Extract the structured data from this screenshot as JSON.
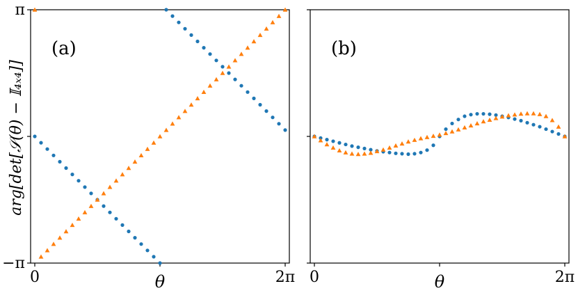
{
  "figure": {
    "ylabel": "arg[det[𝒮(θ) − 𝕀₄ₓ₄]]",
    "colors": {
      "series_circle": "#1f77b4",
      "series_triangle": "#ff7f0e"
    }
  },
  "chart_data": [
    {
      "type": "scatter",
      "panel_label": "(a)",
      "xlabel": "θ",
      "xlim": [
        0,
        6.283
      ],
      "ylim": [
        -3.1416,
        3.1416
      ],
      "xticks": [
        0,
        3.1416,
        6.283
      ],
      "xtick_labels": [
        "0",
        "",
        "2π"
      ],
      "yticks": [
        -3.1416,
        0,
        3.1416
      ],
      "ytick_labels": [
        "−π",
        "",
        "π"
      ],
      "grid": false,
      "series": [
        {
          "marker": "circle",
          "color": "#1f77b4",
          "x": [
            0,
            0.1571,
            0.3142,
            0.4712,
            0.6283,
            0.7854,
            0.9425,
            1.0996,
            1.2566,
            1.4137,
            1.5708,
            1.7279,
            1.885,
            2.042,
            2.1991,
            2.3562,
            2.5133,
            2.6704,
            2.8274,
            2.9845,
            3.1416,
            3.2987,
            3.4558,
            3.6128,
            3.7699,
            3.927,
            4.0841,
            4.2412,
            4.3982,
            4.5553,
            4.7124,
            4.8695,
            5.0265,
            5.1836,
            5.3407,
            5.4978,
            5.6549,
            5.8119,
            5.969,
            6.1261,
            6.2832
          ],
          "y": [
            0,
            -0.1571,
            -0.3142,
            -0.4712,
            -0.6283,
            -0.7854,
            -0.9425,
            -1.0996,
            -1.2566,
            -1.4137,
            -1.5708,
            -1.7279,
            -1.885,
            -2.042,
            -2.1991,
            -2.3562,
            -2.5133,
            -2.6704,
            -2.8274,
            -2.9845,
            -3.1416,
            3.1416,
            2.9845,
            2.8274,
            2.6704,
            2.5133,
            2.3562,
            2.1991,
            2.042,
            1.885,
            1.7279,
            1.5708,
            1.4137,
            1.2566,
            1.0996,
            0.9425,
            0.7854,
            0.6283,
            0.4712,
            0.3142,
            0.1571
          ]
        },
        {
          "marker": "triangle",
          "color": "#ff7f0e",
          "x": [
            0,
            0.1571,
            0.3142,
            0.4712,
            0.6283,
            0.7854,
            0.9425,
            1.0996,
            1.2566,
            1.4137,
            1.5708,
            1.7279,
            1.885,
            2.042,
            2.1991,
            2.3562,
            2.5133,
            2.6704,
            2.8274,
            2.9845,
            3.1416,
            3.2987,
            3.4558,
            3.6128,
            3.7699,
            3.927,
            4.0841,
            4.2412,
            4.3982,
            4.5553,
            4.7124,
            4.8695,
            5.0265,
            5.1836,
            5.3407,
            5.4978,
            5.6549,
            5.8119,
            5.969,
            6.1261,
            6.2832
          ],
          "y": [
            3.1416,
            -2.9845,
            -2.8274,
            -2.6704,
            -2.5133,
            -2.3562,
            -2.1991,
            -2.042,
            -1.885,
            -1.7279,
            -1.5708,
            -1.4137,
            -1.2566,
            -1.0996,
            -0.9425,
            -0.7854,
            -0.6283,
            -0.4712,
            -0.3142,
            -0.1571,
            0,
            0.1571,
            0.3142,
            0.4712,
            0.6283,
            0.7854,
            0.9425,
            1.0996,
            1.2566,
            1.4137,
            1.5708,
            1.7279,
            1.885,
            2.042,
            2.1991,
            2.3562,
            2.5133,
            2.6704,
            2.8274,
            2.9845,
            3.1416
          ]
        }
      ]
    },
    {
      "type": "scatter",
      "panel_label": "(b)",
      "xlabel": "θ",
      "xlim": [
        0,
        6.283
      ],
      "ylim": [
        -3.1416,
        3.1416
      ],
      "xticks": [
        0,
        3.1416,
        6.283
      ],
      "xtick_labels": [
        "0",
        "",
        "2π"
      ],
      "yticks": [
        -3.1416,
        0,
        3.1416
      ],
      "ytick_labels": [
        "",
        "",
        ""
      ],
      "grid": false,
      "series": [
        {
          "marker": "circle",
          "color": "#1f77b4",
          "x": [
            0,
            0.1571,
            0.3142,
            0.4712,
            0.6283,
            0.7854,
            0.9425,
            1.0996,
            1.2566,
            1.4137,
            1.5708,
            1.7279,
            1.885,
            2.042,
            2.1991,
            2.3562,
            2.5133,
            2.6704,
            2.8274,
            2.9845,
            3.1416,
            3.2987,
            3.4558,
            3.6128,
            3.7699,
            3.927,
            4.0841,
            4.2412,
            4.3982,
            4.5553,
            4.7124,
            4.8695,
            5.0265,
            5.1836,
            5.3407,
            5.4978,
            5.6549,
            5.8119,
            5.969,
            6.1261,
            6.2832
          ],
          "y": [
            0,
            -0.04,
            -0.08,
            -0.12,
            -0.16,
            -0.2,
            -0.24,
            -0.27,
            -0.3,
            -0.33,
            -0.36,
            -0.38,
            -0.4,
            -0.42,
            -0.43,
            -0.44,
            -0.43,
            -0.4,
            -0.34,
            -0.22,
            0,
            0.18,
            0.32,
            0.42,
            0.5,
            0.54,
            0.56,
            0.56,
            0.55,
            0.53,
            0.5,
            0.47,
            0.43,
            0.39,
            0.34,
            0.29,
            0.24,
            0.18,
            0.12,
            0.06,
            0
          ]
        },
        {
          "marker": "triangle",
          "color": "#ff7f0e",
          "x": [
            0,
            0.1571,
            0.3142,
            0.4712,
            0.6283,
            0.7854,
            0.9425,
            1.0996,
            1.2566,
            1.4137,
            1.5708,
            1.7279,
            1.885,
            2.042,
            2.1991,
            2.3562,
            2.5133,
            2.6704,
            2.8274,
            2.9845,
            3.1416,
            3.2987,
            3.4558,
            3.6128,
            3.7699,
            3.927,
            4.0841,
            4.2412,
            4.3982,
            4.5553,
            4.7124,
            4.8695,
            5.0265,
            5.1836,
            5.3407,
            5.4978,
            5.6549,
            5.8119,
            5.969,
            6.1261,
            6.2832
          ],
          "y": [
            0,
            -0.1,
            -0.2,
            -0.28,
            -0.35,
            -0.4,
            -0.43,
            -0.44,
            -0.43,
            -0.41,
            -0.37,
            -0.33,
            -0.28,
            -0.23,
            -0.18,
            -0.13,
            -0.09,
            -0.05,
            -0.02,
            0.01,
            0.04,
            0.08,
            0.12,
            0.17,
            0.22,
            0.27,
            0.32,
            0.37,
            0.41,
            0.45,
            0.49,
            0.52,
            0.54,
            0.56,
            0.57,
            0.57,
            0.55,
            0.5,
            0.4,
            0.24,
            0
          ]
        }
      ]
    }
  ]
}
